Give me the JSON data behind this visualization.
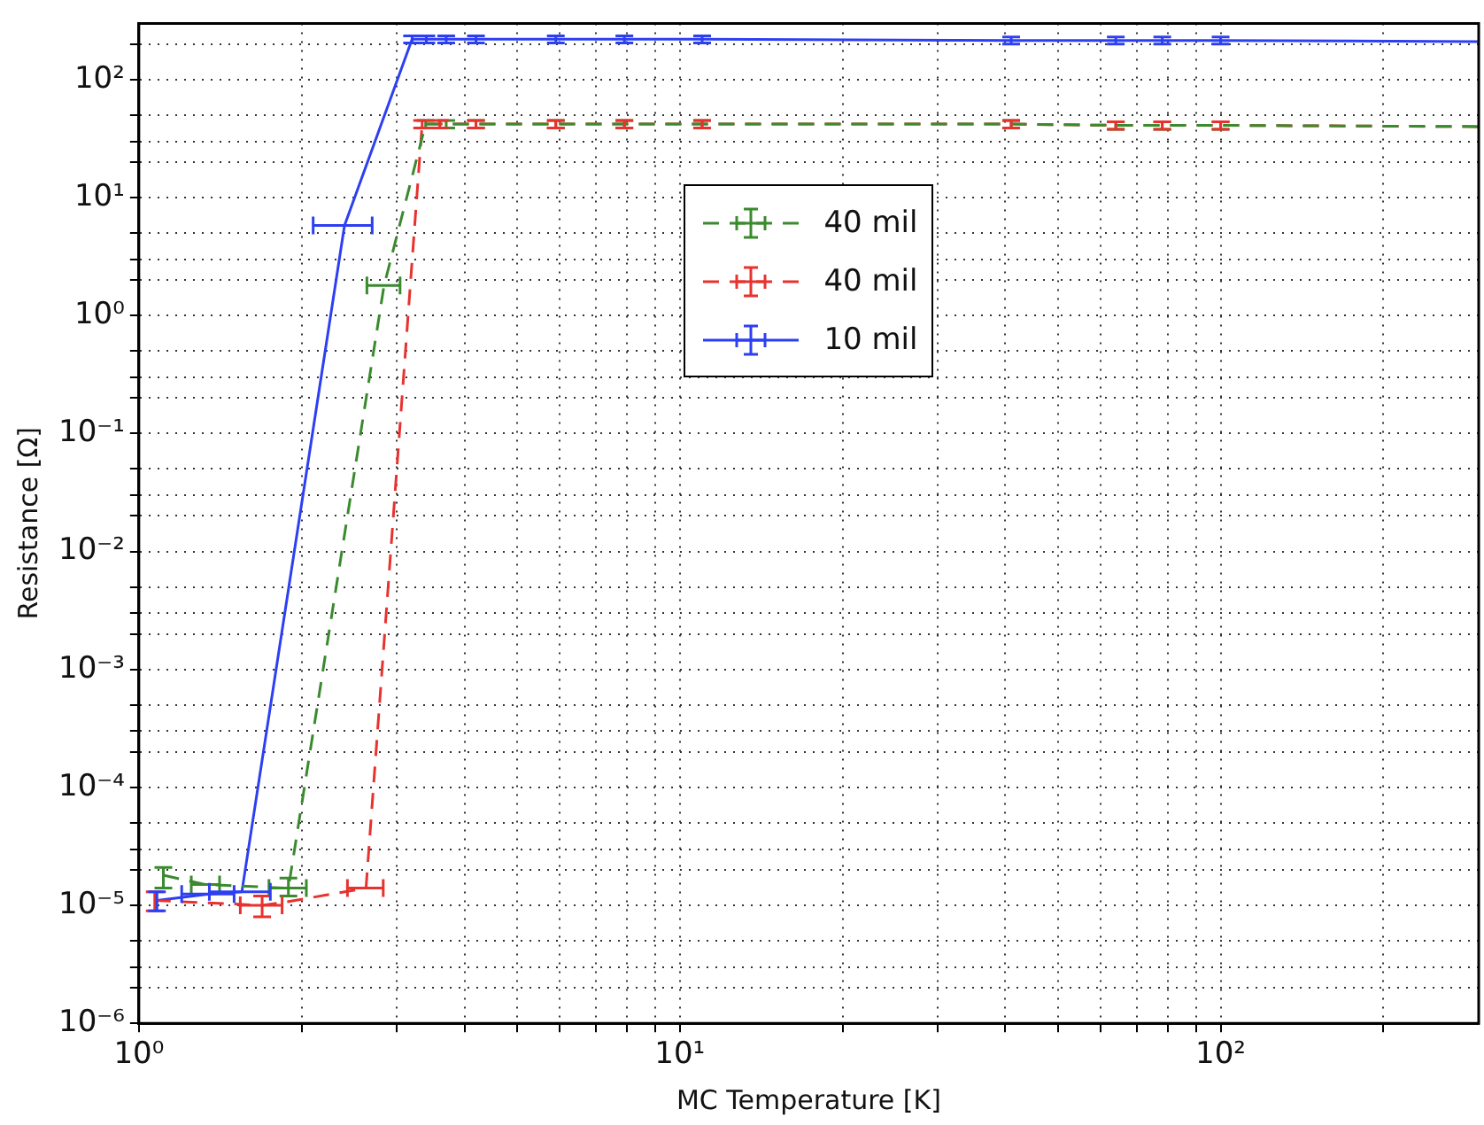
{
  "chart_data": {
    "type": "line",
    "xlabel": "MC Temperature [K]",
    "ylabel": "Resistance [Ω]",
    "log": "xy",
    "grid": true,
    "legend": "top center",
    "marker": "none",
    "xlim": [
      1,
      300
    ],
    "ylim": [
      1e-06,
      300
    ],
    "xticks": [
      {
        "value": 1,
        "label": "10⁰"
      },
      {
        "value": 2,
        "label": null
      },
      {
        "value": 3,
        "label": null
      },
      {
        "value": 4,
        "label": null
      },
      {
        "value": 5,
        "label": null
      },
      {
        "value": 6,
        "label": null
      },
      {
        "value": 7,
        "label": null
      },
      {
        "value": 8,
        "label": null
      },
      {
        "value": 9,
        "label": null
      },
      {
        "value": 10,
        "label": "10¹"
      },
      {
        "value": 20,
        "label": null
      },
      {
        "value": 30,
        "label": null
      },
      {
        "value": 40,
        "label": null
      },
      {
        "value": 50,
        "label": null
      },
      {
        "value": 60,
        "label": null
      },
      {
        "value": 70,
        "label": null
      },
      {
        "value": 80,
        "label": null
      },
      {
        "value": 90,
        "label": null
      },
      {
        "value": 100,
        "label": "10²"
      },
      {
        "value": 200,
        "label": null
      }
    ],
    "yticks": [
      {
        "value": 1e-06,
        "label": "10⁻⁶"
      },
      {
        "value": 2e-06,
        "label": null
      },
      {
        "value": 3e-06,
        "label": null
      },
      {
        "value": 5e-06,
        "label": null
      },
      {
        "value": 1e-05,
        "label": "10⁻⁵"
      },
      {
        "value": 2e-05,
        "label": null
      },
      {
        "value": 3e-05,
        "label": null
      },
      {
        "value": 5e-05,
        "label": null
      },
      {
        "value": 0.0001,
        "label": "10⁻⁴"
      },
      {
        "value": 0.0002,
        "label": null
      },
      {
        "value": 0.0003,
        "label": null
      },
      {
        "value": 0.0005,
        "label": null
      },
      {
        "value": 0.001,
        "label": "10⁻³"
      },
      {
        "value": 0.002,
        "label": null
      },
      {
        "value": 0.003,
        "label": null
      },
      {
        "value": 0.005,
        "label": null
      },
      {
        "value": 0.01,
        "label": "10⁻²"
      },
      {
        "value": 0.02,
        "label": null
      },
      {
        "value": 0.03,
        "label": null
      },
      {
        "value": 0.05,
        "label": null
      },
      {
        "value": 0.1,
        "label": "10⁻¹"
      },
      {
        "value": 0.2,
        "label": null
      },
      {
        "value": 0.3,
        "label": null
      },
      {
        "value": 0.5,
        "label": null
      },
      {
        "value": 1,
        "label": "10⁰"
      },
      {
        "value": 2,
        "label": null
      },
      {
        "value": 3,
        "label": null
      },
      {
        "value": 5,
        "label": null
      },
      {
        "value": 10,
        "label": "10¹"
      },
      {
        "value": 20,
        "label": null
      },
      {
        "value": 30,
        "label": null
      },
      {
        "value": 50,
        "label": null
      },
      {
        "value": 100,
        "label": "10²"
      },
      {
        "value": 200,
        "label": null
      }
    ],
    "series": [
      {
        "name": "40 mil",
        "color": "#3a8a2e",
        "line_style": "dashed",
        "x": [
          1.11,
          1.33,
          1.89,
          2.84,
          3.39,
          3.7,
          4.2,
          5.9,
          7.9,
          11,
          41,
          64,
          78,
          100,
          300
        ],
        "values": [
          1.8e-05,
          1.5e-05,
          1.4e-05,
          1.8,
          42,
          42,
          42,
          42,
          42,
          42,
          42,
          41,
          41,
          41,
          40
        ],
        "errors": [
          [
            1.4e-05,
            2.1e-05
          ],
          null,
          [
            1.2e-05,
            1.7e-05
          ],
          null,
          3,
          3,
          3,
          3,
          3,
          3,
          3,
          3,
          3,
          3,
          null
        ],
        "xerrors": [
          null,
          0.08,
          0.15,
          0.2,
          null,
          null,
          null,
          null,
          null,
          null,
          null,
          null,
          null,
          null,
          null
        ]
      },
      {
        "name": "40 mil",
        "color": "#e8322e",
        "line_style": "dashed",
        "x": [
          1.07,
          1.69,
          1.83,
          2.63,
          3.34,
          3.6,
          4.2,
          5.9,
          7.9,
          11,
          41,
          64,
          78,
          100,
          300
        ],
        "values": [
          1.1e-05,
          1e-05,
          1.05e-05,
          1.4e-05,
          42,
          42,
          42,
          42,
          42,
          42,
          42,
          41,
          41,
          41,
          40
        ],
        "errors": [
          [
            9e-06,
            1.3e-05
          ],
          [
            8e-06,
            1.2e-05
          ],
          null,
          null,
          3,
          3,
          3,
          3,
          3,
          3,
          3,
          3,
          3,
          3,
          null
        ],
        "xerrors": [
          null,
          0.15,
          null,
          0.2,
          null,
          null,
          null,
          null,
          null,
          null,
          null,
          null,
          null,
          null,
          null
        ]
      },
      {
        "name": "10 mil",
        "color": "#2d3ff2",
        "line_style": "solid",
        "x": [
          1.08,
          1.35,
          1.55,
          2.4,
          3.2,
          3.4,
          3.7,
          4.2,
          5.9,
          7.9,
          11,
          41,
          64,
          78,
          100,
          300
        ],
        "values": [
          1.1e-05,
          1.25e-05,
          1.3e-05,
          5.8,
          220,
          220,
          220,
          220,
          220,
          220,
          220,
          215,
          215,
          215,
          215,
          210
        ],
        "errors": [
          [
            9e-06,
            1.3e-05
          ],
          null,
          null,
          null,
          15,
          15,
          15,
          15,
          15,
          15,
          15,
          15,
          15,
          15,
          15,
          null
        ],
        "xerrors": [
          null,
          0.15,
          0.2,
          0.3,
          null,
          null,
          null,
          null,
          null,
          null,
          null,
          null,
          null,
          null,
          null,
          null
        ]
      }
    ]
  }
}
